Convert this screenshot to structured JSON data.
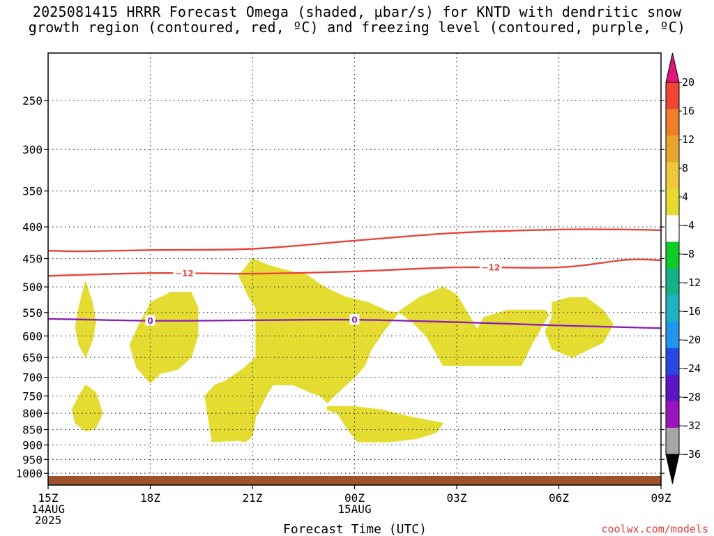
{
  "chart_data": {
    "type": "contour",
    "title_lines": [
      "2025081415 HRRR Forecast Omega (shaded, µbar/s) for KNTD with dendritic snow",
      "growth region (contoured, red, ºC) and freezing level (contoured, purple, ºC)"
    ],
    "xlabel": "Forecast Time (UTC)",
    "credit": "coolwx.com/models",
    "x_ticks": [
      {
        "hour": 0,
        "lines": [
          "15Z",
          "14AUG",
          "2025"
        ]
      },
      {
        "hour": 3,
        "lines": [
          "18Z"
        ]
      },
      {
        "hour": 6,
        "lines": [
          "21Z"
        ]
      },
      {
        "hour": 9,
        "lines": [
          "00Z",
          "15AUG"
        ]
      },
      {
        "hour": 12,
        "lines": [
          "03Z"
        ]
      },
      {
        "hour": 15,
        "lines": [
          "06Z"
        ]
      },
      {
        "hour": 18,
        "lines": [
          "09Z"
        ]
      }
    ],
    "xlim": [
      0,
      18
    ],
    "y_axis": {
      "unit": "hPa",
      "reversed": true,
      "range": [
        200,
        1030
      ]
    },
    "y_ticks": [
      250,
      300,
      350,
      400,
      450,
      500,
      550,
      600,
      650,
      700,
      750,
      800,
      850,
      900,
      950,
      1000
    ],
    "grid": true,
    "ground_color": "#a0522d",
    "ground_level": 1010,
    "omega_fill": {
      "label": "4 to 8",
      "color": "#e5dc32",
      "regions": [
        [
          [
            1.1,
            490
          ],
          [
            1.3,
            530
          ],
          [
            1.4,
            570
          ],
          [
            1.3,
            610
          ],
          [
            1.1,
            650
          ],
          [
            0.9,
            620
          ],
          [
            0.8,
            580
          ],
          [
            0.9,
            540
          ]
        ],
        [
          [
            1.1,
            720
          ],
          [
            1.4,
            740
          ],
          [
            1.6,
            800
          ],
          [
            1.4,
            845
          ],
          [
            1.1,
            855
          ],
          [
            0.8,
            830
          ],
          [
            0.7,
            790
          ],
          [
            0.9,
            750
          ]
        ],
        [
          [
            3.0,
            530
          ],
          [
            3.6,
            510
          ],
          [
            4.2,
            510
          ],
          [
            4.4,
            540
          ],
          [
            4.4,
            600
          ],
          [
            4.2,
            650
          ],
          [
            3.8,
            680
          ],
          [
            3.3,
            690
          ],
          [
            3.0,
            715
          ],
          [
            2.6,
            675
          ],
          [
            2.4,
            620
          ],
          [
            2.7,
            570
          ],
          [
            2.9,
            545
          ]
        ],
        [
          [
            6.0,
            450
          ],
          [
            6.5,
            462
          ],
          [
            7.0,
            470
          ],
          [
            7.6,
            478
          ],
          [
            8.1,
            500
          ],
          [
            8.7,
            518
          ],
          [
            9.4,
            530
          ],
          [
            10.0,
            548
          ],
          [
            10.3,
            550
          ],
          [
            9.9,
            585
          ],
          [
            9.5,
            630
          ],
          [
            9.3,
            670
          ],
          [
            9.0,
            700
          ],
          [
            8.4,
            750
          ],
          [
            8.2,
            770
          ],
          [
            8.0,
            750
          ],
          [
            7.7,
            740
          ],
          [
            7.2,
            720
          ],
          [
            6.6,
            720
          ],
          [
            6.4,
            750
          ],
          [
            6.1,
            810
          ],
          [
            6.0,
            870
          ],
          [
            5.8,
            890
          ],
          [
            5.6,
            885
          ],
          [
            4.8,
            890
          ],
          [
            4.8,
            880
          ],
          [
            4.7,
            810
          ],
          [
            4.6,
            750
          ],
          [
            4.9,
            720
          ],
          [
            5.2,
            710
          ],
          [
            5.7,
            680
          ],
          [
            6.1,
            650
          ],
          [
            6.1,
            600
          ],
          [
            6.1,
            540
          ],
          [
            5.9,
            520
          ],
          [
            5.6,
            480
          ]
        ],
        [
          [
            10.3,
            548
          ],
          [
            10.9,
            520
          ],
          [
            11.6,
            500
          ],
          [
            12.0,
            515
          ],
          [
            12.4,
            560
          ],
          [
            12.6,
            585
          ],
          [
            12.8,
            560
          ],
          [
            13.5,
            545
          ],
          [
            14.6,
            545
          ],
          [
            14.7,
            555
          ],
          [
            14.5,
            580
          ],
          [
            14.2,
            620
          ],
          [
            13.9,
            670
          ],
          [
            13.0,
            670
          ],
          [
            12.0,
            670
          ],
          [
            11.6,
            670
          ],
          [
            11.4,
            640
          ],
          [
            11.1,
            600
          ],
          [
            10.7,
            570
          ]
        ],
        [
          [
            14.8,
            530
          ],
          [
            15.3,
            520
          ],
          [
            15.8,
            520
          ],
          [
            16.3,
            545
          ],
          [
            16.6,
            575
          ],
          [
            16.3,
            615
          ],
          [
            15.9,
            630
          ],
          [
            15.4,
            650
          ],
          [
            14.8,
            630
          ],
          [
            14.6,
            590
          ],
          [
            14.8,
            560
          ]
        ],
        [
          [
            8.2,
            780
          ],
          [
            9.0,
            780
          ],
          [
            9.8,
            790
          ],
          [
            10.6,
            810
          ],
          [
            11.6,
            830
          ],
          [
            11.4,
            860
          ],
          [
            10.8,
            880
          ],
          [
            10.0,
            890
          ],
          [
            9.1,
            890
          ],
          [
            8.8,
            850
          ],
          [
            8.5,
            800
          ],
          [
            8.2,
            790
          ]
        ]
      ]
    },
    "dgz_contours": {
      "color": "#e8443a",
      "series": [
        {
          "name": "-12",
          "points": [
            [
              0,
              437
            ],
            [
              1,
              438
            ],
            [
              3,
              436
            ],
            [
              6,
              434
            ],
            [
              9,
              421
            ],
            [
              12,
              409
            ],
            [
              15,
              404
            ],
            [
              17,
              404
            ],
            [
              18,
              405
            ]
          ],
          "label_at": [
            [
              4.0,
              0
            ],
            [
              13.0,
              0
            ]
          ],
          "labelled": false
        },
        {
          "name": "-12",
          "points": [
            [
              0,
              480
            ],
            [
              3,
              475
            ],
            [
              6,
              476
            ],
            [
              9,
              472
            ],
            [
              12,
              465
            ],
            [
              15,
              465
            ],
            [
              17,
              452
            ],
            [
              18,
              453
            ]
          ],
          "label_at": [
            [
              4.0,
              0
            ],
            [
              13.0,
              0
            ]
          ],
          "labelled": true
        }
      ]
    },
    "freezing_level": {
      "color": "#8a1fb8",
      "label": "0",
      "points": [
        [
          0,
          563
        ],
        [
          3,
          567
        ],
        [
          6,
          566
        ],
        [
          9,
          565
        ],
        [
          12,
          570
        ],
        [
          15,
          577
        ],
        [
          18,
          583
        ]
      ],
      "label_hours": [
        3,
        9
      ]
    },
    "colorbar": {
      "levels": [
        "20",
        "16",
        "12",
        "8",
        "4",
        "-4",
        "-8",
        "-12",
        "-16",
        "-20",
        "-24",
        "-28",
        "-32",
        "-36"
      ],
      "colors": [
        "#e2167a",
        "#f04636",
        "#ee7e2a",
        "#e8a52d",
        "#ecc83a",
        "#e5dc32",
        "#ffffff",
        "#0ecc26",
        "#18b085",
        "#1db2c2",
        "#2196ec",
        "#2848e6",
        "#5b16c8",
        "#9a14bc",
        "#a6a6a6",
        "#000000"
      ]
    }
  }
}
